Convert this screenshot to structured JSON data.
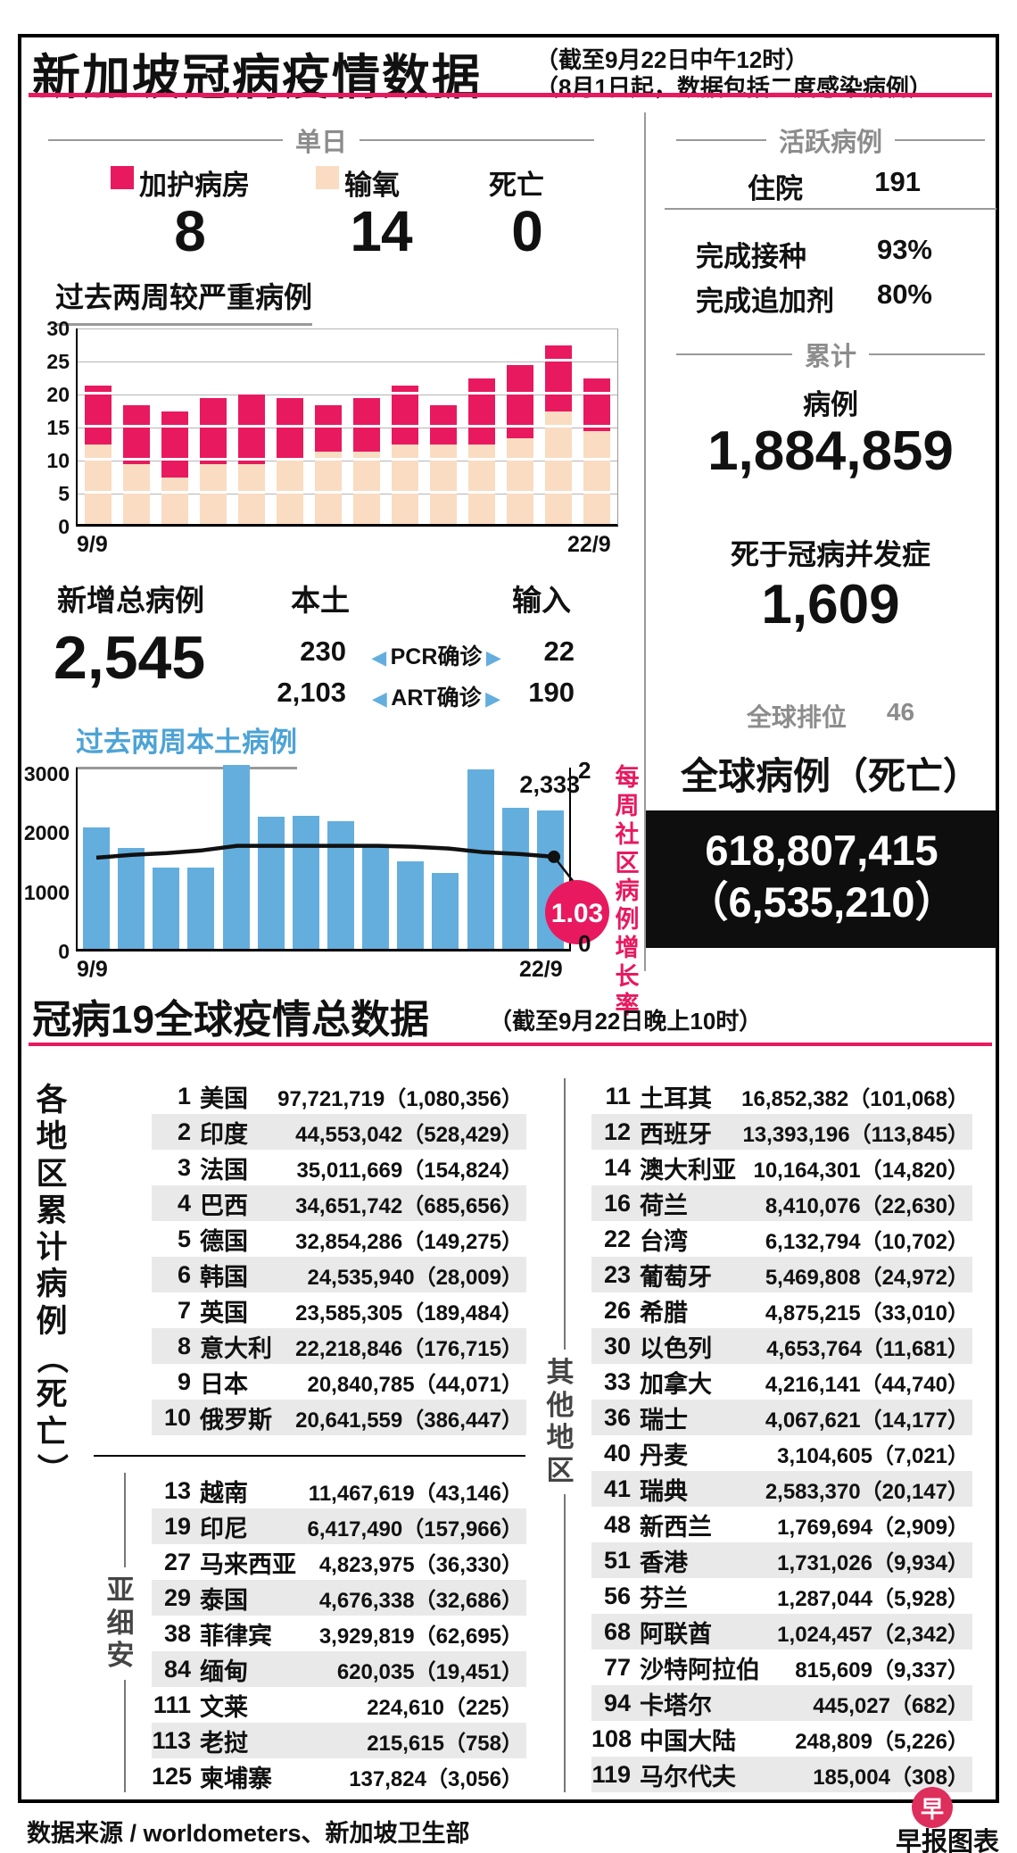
{
  "page": {
    "title": "新加坡冠病疫情数据",
    "subtitle_line1": "（截至9月22日中午12时）",
    "subtitle_line2": "（8月1日起，数据包括二度感染病例）"
  },
  "daily": {
    "header": "单日",
    "icu_label": "加护病房",
    "oxygen_label": "输氧",
    "death_label": "死亡",
    "icu_value": "8",
    "oxygen_value": "14",
    "death_value": "0"
  },
  "new_cases": {
    "total_label": "新增总病例",
    "total_value": "2,545",
    "local_label": "本土",
    "imported_label": "输入",
    "rows": [
      {
        "local": "230",
        "method": "PCR确诊",
        "imported": "22"
      },
      {
        "local": "2,103",
        "method": "ART确诊",
        "imported": "190"
      }
    ]
  },
  "active": {
    "header": "活跃病例",
    "hospital_label": "住院",
    "hospital_value": "191",
    "vaccinated_label": "完成接种",
    "vaccinated_value": "93%",
    "booster_label": "完成追加剂",
    "booster_value": "80%"
  },
  "cumulative": {
    "header": "累计",
    "cases_label": "病例",
    "cases_value": "1,884,859",
    "deaths_label": "死于冠病并发症",
    "deaths_value": "1,609",
    "rank_label": "全球排位",
    "rank_value": "46",
    "global_label": "全球病例（死亡）",
    "global_cases": "618,807,415",
    "global_deaths": "（6,535,210）"
  },
  "global_section": {
    "title": "冠病19全球疫情总数据",
    "subtitle": "（截至9月22日晚上10时）",
    "side_label": "各地区累计病例（死亡）",
    "asean_label": "亚细安",
    "others_label": "其他地区",
    "top10": [
      {
        "rank": "1",
        "name": "美国",
        "value": "97,721,719（1,080,356）"
      },
      {
        "rank": "2",
        "name": "印度",
        "value": "44,553,042（528,429）"
      },
      {
        "rank": "3",
        "name": "法国",
        "value": "35,011,669（154,824）"
      },
      {
        "rank": "4",
        "name": "巴西",
        "value": "34,651,742（685,656）"
      },
      {
        "rank": "5",
        "name": "德国",
        "value": "32,854,286（149,275）"
      },
      {
        "rank": "6",
        "name": "韩国",
        "value": "24,535,940（28,009）"
      },
      {
        "rank": "7",
        "name": "英国",
        "value": "23,585,305（189,484）"
      },
      {
        "rank": "8",
        "name": "意大利",
        "value": "22,218,846（176,715）"
      },
      {
        "rank": "9",
        "name": "日本",
        "value": "20,840,785（44,071）"
      },
      {
        "rank": "10",
        "name": "俄罗斯",
        "value": "20,641,559（386,447）"
      }
    ],
    "asean": [
      {
        "rank": "13",
        "name": "越南",
        "value": "11,467,619（43,146）"
      },
      {
        "rank": "19",
        "name": "印尼",
        "value": "6,417,490（157,966）"
      },
      {
        "rank": "27",
        "name": "马来西亚",
        "value": "4,823,975（36,330）"
      },
      {
        "rank": "29",
        "name": "泰国",
        "value": "4,676,338（32,686）"
      },
      {
        "rank": "38",
        "name": "菲律宾",
        "value": "3,929,819（62,695）"
      },
      {
        "rank": "84",
        "name": "缅甸",
        "value": "620,035（19,451）"
      },
      {
        "rank": "111",
        "name": "文莱",
        "value": "224,610（225）"
      },
      {
        "rank": "113",
        "name": "老挝",
        "value": "215,615（758）"
      },
      {
        "rank": "125",
        "name": "柬埔寨",
        "value": "137,824（3,056）"
      }
    ],
    "others": [
      {
        "rank": "11",
        "name": "土耳其",
        "value": "16,852,382（101,068）"
      },
      {
        "rank": "12",
        "name": "西班牙",
        "value": "13,393,196（113,845）"
      },
      {
        "rank": "14",
        "name": "澳大利亚",
        "value": "10,164,301（14,820）"
      },
      {
        "rank": "16",
        "name": "荷兰",
        "value": "8,410,076（22,630）"
      },
      {
        "rank": "22",
        "name": "台湾",
        "value": "6,132,794（10,702）"
      },
      {
        "rank": "23",
        "name": "葡萄牙",
        "value": "5,469,808（24,972）"
      },
      {
        "rank": "26",
        "name": "希腊",
        "value": "4,875,215（33,010）"
      },
      {
        "rank": "30",
        "name": "以色列",
        "value": "4,653,764（11,681）"
      },
      {
        "rank": "33",
        "name": "加拿大",
        "value": "4,216,141（44,740）"
      },
      {
        "rank": "36",
        "name": "瑞士",
        "value": "4,067,621（14,177）"
      },
      {
        "rank": "40",
        "name": "丹麦",
        "value": "3,104,605（7,021）"
      },
      {
        "rank": "41",
        "name": "瑞典",
        "value": "2,583,370（20,147）"
      },
      {
        "rank": "48",
        "name": "新西兰",
        "value": "1,769,694（2,909）"
      },
      {
        "rank": "51",
        "name": "香港",
        "value": "1,731,026（9,934）"
      },
      {
        "rank": "56",
        "name": "芬兰",
        "value": "1,287,044（5,928）"
      },
      {
        "rank": "68",
        "name": "阿联酋",
        "value": "1,024,457（2,342）"
      },
      {
        "rank": "77",
        "name": "沙特阿拉伯",
        "value": "815,609（9,337）"
      },
      {
        "rank": "94",
        "name": "卡塔尔",
        "value": "445,027（682）"
      },
      {
        "rank": "108",
        "name": "中国大陆",
        "value": "248,809（5,226）"
      },
      {
        "rank": "119",
        "name": "马尔代夫",
        "value": "185,004（308）"
      }
    ]
  },
  "footer": {
    "source": "数据来源 / worldometers、新加坡卫生部",
    "credit": "早报图表",
    "logo_char": "早"
  },
  "chart_data": [
    {
      "type": "bar",
      "stacked": true,
      "title": "过去两周较严重病例",
      "x": [
        "9/9",
        "10/9",
        "11/9",
        "12/9",
        "13/9",
        "14/9",
        "15/9",
        "16/9",
        "17/9",
        "18/9",
        "19/9",
        "20/9",
        "21/9",
        "22/9"
      ],
      "series": [
        {
          "name": "输氧",
          "color": "#f9dcc2",
          "values": [
            12,
            9,
            7,
            9,
            9,
            10,
            11,
            11,
            12,
            12,
            12,
            13,
            17,
            14
          ]
        },
        {
          "name": "加护病房",
          "color": "#e8195f",
          "values": [
            9,
            9,
            10,
            10,
            11,
            9,
            7,
            8,
            9,
            6,
            10,
            11,
            10,
            8
          ]
        }
      ],
      "ylim": [
        0,
        30
      ],
      "y_ticks": [
        "30",
        "25",
        "20",
        "15",
        "10",
        "5",
        "0"
      ],
      "grid": true,
      "x_ticks_shown": [
        "9/9",
        "22/9"
      ]
    },
    {
      "type": "bar+line",
      "title": "过去两周本土病例",
      "x": [
        "9/9",
        "10/9",
        "11/9",
        "12/9",
        "13/9",
        "14/9",
        "15/9",
        "16/9",
        "17/9",
        "18/9",
        "19/9",
        "20/9",
        "21/9",
        "22/9"
      ],
      "bar_series": {
        "name": "本土病例",
        "color": "#64aede",
        "values": [
          2050,
          1700,
          1370,
          1370,
          3100,
          2230,
          2250,
          2150,
          1750,
          1470,
          1280,
          3020,
          2380,
          2333
        ]
      },
      "line_series": {
        "name": "每周社区病例增长率",
        "color": "#000000",
        "axis": "right",
        "values": [
          1.02,
          1.05,
          1.07,
          1.1,
          1.15,
          1.15,
          1.15,
          1.15,
          1.15,
          1.14,
          1.12,
          1.08,
          1.06,
          1.03
        ],
        "badge": "1.03"
      },
      "left_ylim": [
        0,
        3100
      ],
      "left_ticks": [
        "3000",
        "2000",
        "1000",
        "0"
      ],
      "right_ylim": [
        0,
        2
      ],
      "right_ticks": [
        "2",
        "0"
      ],
      "right_axis_label": "每周社区病例增长率",
      "annotations": {
        "last_bar_label": "2,333"
      },
      "grid": false,
      "x_ticks_shown": [
        "9/9",
        "22/9"
      ]
    }
  ]
}
